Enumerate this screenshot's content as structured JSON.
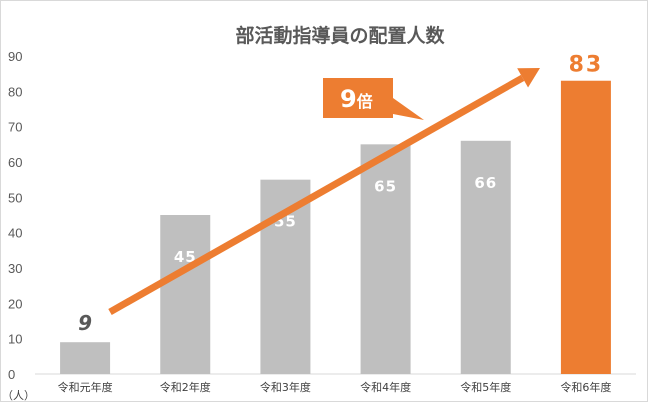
{
  "chart_data": {
    "type": "bar",
    "title": "部活動指導員の配置人数",
    "unit_label": "（人）",
    "categories": [
      "令和元年度",
      "令和2年度",
      "令和3年度",
      "令和4年度",
      "令和5年度",
      "令和6年度"
    ],
    "values": [
      9,
      45,
      55,
      65,
      66,
      83
    ],
    "ylim": [
      0,
      90
    ],
    "yticks": [
      0,
      10,
      20,
      30,
      40,
      50,
      60,
      70,
      80,
      90
    ],
    "grid": false,
    "highlight_index": 5,
    "colors": {
      "bar": "#bfbfbf",
      "highlight": "#ed7d31",
      "arrow": "#ed7d31",
      "axis": "#d9d9d9",
      "callout": "#ed7d31"
    },
    "annotation": {
      "text": "9",
      "suffix": "倍",
      "description": "arrow from first bar to last bar"
    }
  }
}
